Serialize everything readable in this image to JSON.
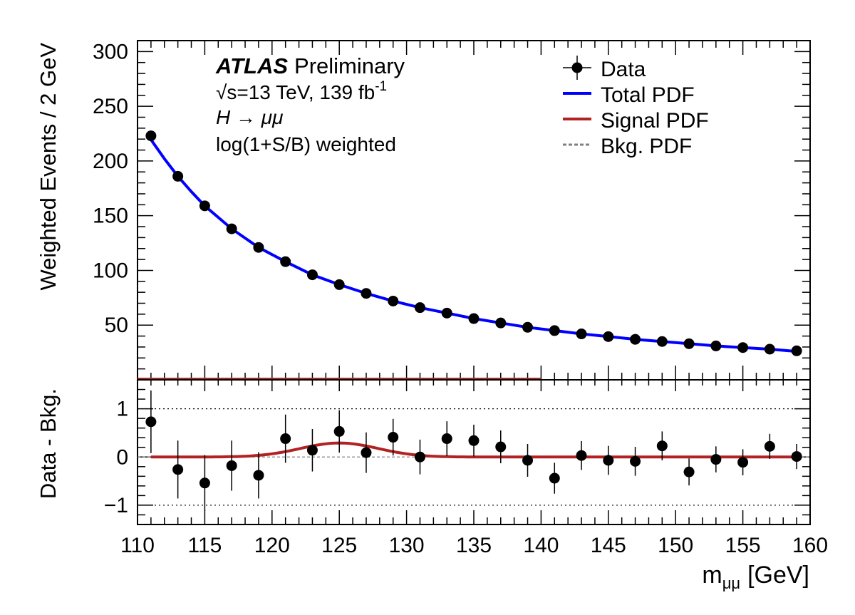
{
  "chart_data": {
    "type": "scatter",
    "experiment": "ATLAS",
    "status": "Preliminary",
    "energy_lumi": "√s=13 TeV, 139 fb",
    "lumi_exponent": "-1",
    "process": "H → μμ",
    "weighting": "log(1+S/B) weighted",
    "xlabel": "m",
    "xlabel_sub": "μμ",
    "xlabel_unit": "[GeV]",
    "top_ylabel": "Weighted Events / 2 GeV",
    "bottom_ylabel": "Data - Bkg.",
    "xlim": [
      110,
      160
    ],
    "top_ylim": [
      0,
      310
    ],
    "bottom_ylim": [
      -1.4,
      1.6
    ],
    "x_ticks": [
      "110",
      "115",
      "120",
      "125",
      "130",
      "135",
      "140",
      "145",
      "150",
      "155",
      "160"
    ],
    "top_y_ticks": [
      "50",
      "100",
      "150",
      "200",
      "250",
      "300"
    ],
    "bottom_y_ticks": [
      "−1",
      "0",
      "1"
    ],
    "legend": {
      "placement": "top-right",
      "entries": [
        {
          "label": "Data",
          "style": "marker"
        },
        {
          "label": "Total PDF",
          "style": "line",
          "color": "#0000ff"
        },
        {
          "label": "Signal PDF",
          "style": "line",
          "color": "#b22222"
        },
        {
          "label": "Bkg. PDF",
          "style": "dashed",
          "color": "#808080"
        }
      ]
    },
    "colors": {
      "total": "#0000ff",
      "signal": "#b22222",
      "background": "#808080",
      "data": "#000000"
    },
    "data_top": {
      "x": [
        111,
        113,
        115,
        117,
        119,
        121,
        123,
        125,
        127,
        129,
        131,
        133,
        135,
        137,
        139,
        141,
        143,
        145,
        147,
        149,
        151,
        153,
        155,
        157,
        159
      ],
      "y": [
        223,
        186,
        159,
        138,
        121,
        108,
        96,
        87,
        79,
        72,
        66,
        61,
        56,
        52,
        48,
        45,
        42,
        39.5,
        37,
        35,
        33,
        31,
        29.5,
        28,
        26.5
      ]
    },
    "total_pdf": {
      "x": [
        110.8,
        112,
        113,
        114,
        115,
        117,
        119,
        121,
        123,
        125,
        127,
        129,
        131,
        133,
        135,
        137,
        139,
        141,
        143,
        145,
        147,
        149,
        151,
        153,
        155,
        157,
        159
      ],
      "y": [
        223,
        202,
        186,
        172,
        159,
        138,
        121,
        108,
        96,
        87,
        79,
        72,
        66,
        61,
        56,
        52,
        48,
        45,
        42,
        39.5,
        37,
        35,
        33,
        31,
        29.5,
        28,
        26
      ]
    },
    "data_bottom": {
      "x": [
        111,
        113,
        115,
        117,
        119,
        121,
        123,
        125,
        127,
        129,
        131,
        133,
        135,
        137,
        139,
        141,
        143,
        145,
        147,
        149,
        151,
        153,
        155,
        157,
        159
      ],
      "y": [
        0.73,
        -0.26,
        -0.54,
        -0.18,
        -0.38,
        0.38,
        0.14,
        0.53,
        0.09,
        0.41,
        0.0,
        0.38,
        0.34,
        0.21,
        -0.07,
        -0.44,
        0.03,
        -0.07,
        -0.09,
        0.23,
        -0.31,
        -0.05,
        -0.11,
        0.22,
        0.01
      ],
      "err": [
        0.65,
        0.6,
        0.58,
        0.52,
        0.48,
        0.5,
        0.44,
        0.44,
        0.42,
        0.38,
        0.36,
        0.36,
        0.33,
        0.34,
        0.34,
        0.32,
        0.3,
        0.3,
        0.3,
        0.3,
        0.28,
        0.27,
        0.27,
        0.26,
        0.26
      ]
    },
    "signal_pdf": {
      "peak_x": 125,
      "peak_y": 0.29,
      "width": 2.9
    }
  }
}
